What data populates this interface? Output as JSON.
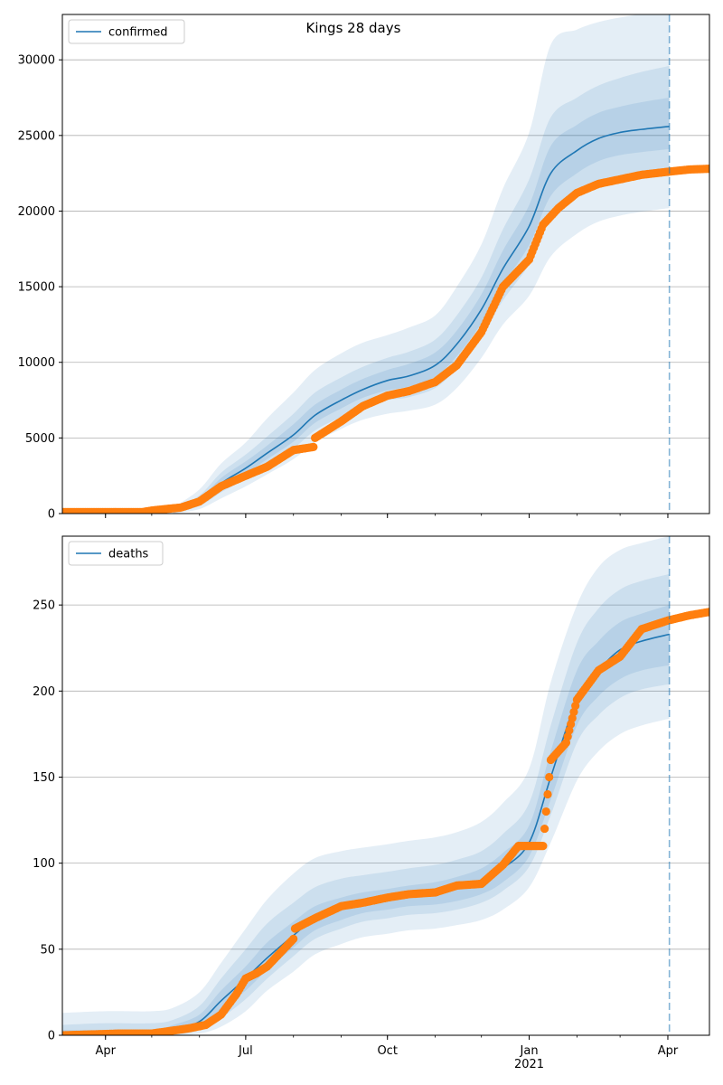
{
  "chart_data": [
    {
      "type": "line",
      "title": "Kings 28 days",
      "xlabel": "",
      "ylabel": "",
      "x_tick_labels": [
        "Apr",
        "Jul",
        "Oct",
        "Jan\n2021",
        "Apr"
      ],
      "x_tick_dates": [
        "2020-04-01",
        "2020-07-01",
        "2020-10-01",
        "2021-01-01",
        "2021-04-01"
      ],
      "xlim": [
        "2020-03-04",
        "2021-04-28"
      ],
      "ylim": [
        0,
        33000
      ],
      "y_ticks": [
        0,
        5000,
        10000,
        15000,
        20000,
        25000,
        30000
      ],
      "grid": "horizontal",
      "legend_position": "top-left",
      "forecast_start": "2021-04-02",
      "series": [
        {
          "name": "confirmed",
          "kind": "line",
          "color": "#1f77b4",
          "dates": [
            "2020-05-15",
            "2020-06-01",
            "2020-06-15",
            "2020-07-01",
            "2020-07-15",
            "2020-08-01",
            "2020-08-15",
            "2020-09-01",
            "2020-09-15",
            "2020-10-01",
            "2020-10-15",
            "2020-11-01",
            "2020-11-15",
            "2020-12-01",
            "2020-12-15",
            "2021-01-01",
            "2021-01-15",
            "2021-02-01",
            "2021-02-15",
            "2021-03-01",
            "2021-03-15",
            "2021-04-02"
          ],
          "values": [
            150,
            800,
            2000,
            3000,
            4000,
            5200,
            6500,
            7500,
            8200,
            8800,
            9100,
            9800,
            11200,
            13500,
            16200,
            19000,
            22500,
            24000,
            24800,
            25200,
            25400,
            25600
          ]
        },
        {
          "kind": "band",
          "color": "#1f77b4",
          "dates": [
            "2020-05-15",
            "2020-06-01",
            "2020-06-15",
            "2020-07-01",
            "2020-07-15",
            "2020-08-01",
            "2020-08-15",
            "2020-09-01",
            "2020-09-15",
            "2020-10-01",
            "2020-10-15",
            "2020-11-01",
            "2020-11-15",
            "2020-12-01",
            "2020-12-15",
            "2021-01-01",
            "2021-01-15",
            "2021-02-01",
            "2021-02-15",
            "2021-03-01",
            "2021-03-15",
            "2021-04-02"
          ],
          "outer_low": [
            0,
            300,
            1000,
            1800,
            2600,
            3600,
            4700,
            5600,
            6200,
            6600,
            6800,
            7200,
            8300,
            10300,
            12500,
            14400,
            17000,
            18500,
            19300,
            19700,
            19950,
            20200
          ],
          "outer_high": [
            400,
            1600,
            3300,
            4700,
            6300,
            8000,
            9500,
            10600,
            11300,
            11800,
            12300,
            13100,
            15000,
            17800,
            21500,
            25200,
            31000,
            32000,
            32500,
            32800,
            33000,
            33000
          ],
          "mid_low": [
            30,
            500,
            1400,
            2300,
            3200,
            4300,
            5500,
            6400,
            7100,
            7500,
            7700,
            8300,
            9600,
            11700,
            14100,
            16500,
            19500,
            21000,
            21800,
            22200,
            22400,
            22600
          ],
          "mid_high": [
            280,
            1200,
            2700,
            3900,
            5100,
            6600,
            8000,
            9000,
            9700,
            10300,
            10700,
            11500,
            13100,
            15600,
            18800,
            22100,
            26200,
            27500,
            28300,
            28800,
            29200,
            29600
          ],
          "inner_low": [
            80,
            650,
            1700,
            2650,
            3600,
            4750,
            6000,
            6950,
            7650,
            8150,
            8400,
            9050,
            10400,
            12600,
            15150,
            17750,
            21000,
            22500,
            23300,
            23700,
            23900,
            24100
          ],
          "inner_high": [
            220,
            1000,
            2350,
            3450,
            4500,
            5900,
            7200,
            8200,
            8900,
            9500,
            9900,
            10650,
            12100,
            14500,
            17400,
            20400,
            24300,
            25700,
            26500,
            26900,
            27200,
            27500
          ]
        },
        {
          "kind": "observed",
          "color": "#ff7f0e",
          "dates": [
            "2020-03-04",
            "2020-04-01",
            "2020-04-25",
            "2020-05-01",
            "2020-05-10",
            "2020-05-20",
            "2020-06-01",
            "2020-06-15",
            "2020-07-01",
            "2020-07-15",
            "2020-08-01",
            "2020-08-14",
            "2020-08-15",
            "2020-09-01",
            "2020-09-15",
            "2020-10-01",
            "2020-10-15",
            "2020-11-01",
            "2020-11-15",
            "2020-12-01",
            "2020-12-15",
            "2021-01-01",
            "2021-01-10",
            "2021-01-20",
            "2021-02-01",
            "2021-02-15",
            "2021-03-01",
            "2021-03-15",
            "2021-04-01",
            "2021-04-15",
            "2021-04-28"
          ],
          "values": [
            100,
            100,
            100,
            200,
            300,
            400,
            800,
            1800,
            2500,
            3100,
            4200,
            4400,
            5000,
            6100,
            7100,
            7800,
            8100,
            8700,
            9800,
            12000,
            15000,
            16800,
            19100,
            20200,
            21200,
            21800,
            22100,
            22400,
            22600,
            22750,
            22800
          ]
        }
      ]
    },
    {
      "type": "line",
      "title": "",
      "xlabel": "",
      "ylabel": "",
      "x_tick_labels": [
        "Apr",
        "Jul",
        "Oct",
        "Jan\n2021",
        "Apr"
      ],
      "x_tick_dates": [
        "2020-04-01",
        "2020-07-01",
        "2020-10-01",
        "2021-01-01",
        "2021-04-01"
      ],
      "xlim": [
        "2020-03-04",
        "2021-04-28"
      ],
      "ylim": [
        0,
        290
      ],
      "y_ticks": [
        0,
        50,
        100,
        150,
        200,
        250
      ],
      "grid": "horizontal",
      "legend_position": "top-left",
      "forecast_start": "2021-04-02",
      "series": [
        {
          "name": "deaths",
          "kind": "line",
          "color": "#1f77b4",
          "dates": [
            "2020-03-04",
            "2020-04-01",
            "2020-05-01",
            "2020-05-15",
            "2020-06-01",
            "2020-06-15",
            "2020-07-01",
            "2020-07-15",
            "2020-08-01",
            "2020-08-15",
            "2020-09-01",
            "2020-09-15",
            "2020-10-01",
            "2020-10-15",
            "2020-11-01",
            "2020-11-15",
            "2020-12-01",
            "2020-12-15",
            "2021-01-01",
            "2021-01-15",
            "2021-02-01",
            "2021-02-15",
            "2021-03-01",
            "2021-03-15",
            "2021-04-02"
          ],
          "values": [
            0,
            0,
            1,
            3,
            8,
            20,
            33,
            45,
            58,
            68,
            74,
            77,
            79,
            81,
            83,
            85,
            89,
            97,
            112,
            150,
            195,
            212,
            224,
            229,
            233
          ]
        },
        {
          "kind": "band",
          "color": "#1f77b4",
          "dates": [
            "2020-03-04",
            "2020-04-01",
            "2020-05-01",
            "2020-05-15",
            "2020-06-01",
            "2020-06-15",
            "2020-07-01",
            "2020-07-15",
            "2020-08-01",
            "2020-08-15",
            "2020-09-01",
            "2020-09-15",
            "2020-10-01",
            "2020-10-15",
            "2020-11-01",
            "2020-11-15",
            "2020-12-01",
            "2020-12-15",
            "2021-01-01",
            "2021-01-15",
            "2021-02-01",
            "2021-02-15",
            "2021-03-01",
            "2021-03-15",
            "2021-04-02"
          ],
          "outer_low": [
            0,
            0,
            0,
            0,
            1,
            5,
            14,
            26,
            37,
            47,
            53,
            57,
            59,
            61,
            62,
            64,
            67,
            73,
            86,
            112,
            148,
            165,
            175,
            180,
            184
          ],
          "outer_high": [
            13,
            14,
            14,
            16,
            25,
            42,
            62,
            79,
            94,
            103,
            107,
            109,
            111,
            113,
            115,
            118,
            124,
            135,
            155,
            205,
            250,
            272,
            282,
            286,
            290
          ],
          "mid_low": [
            0,
            0,
            0,
            0,
            3,
            10,
            21,
            33,
            46,
            56,
            62,
            66,
            68,
            70,
            71,
            73,
            77,
            84,
            98,
            128,
            170,
            186,
            196,
            201,
            204
          ],
          "mid_high": [
            6,
            7,
            7,
            9,
            17,
            33,
            50,
            65,
            77,
            86,
            91,
            93,
            95,
            97,
            99,
            102,
            107,
            117,
            135,
            180,
            228,
            248,
            259,
            264,
            268
          ],
          "inner_low": [
            0,
            0,
            0,
            1,
            5,
            15,
            26,
            38,
            51,
            61,
            67,
            71,
            73,
            75,
            76,
            78,
            82,
            89,
            104,
            137,
            180,
            197,
            207,
            212,
            215
          ],
          "inner_high": [
            3,
            3,
            3,
            6,
            12,
            26,
            40,
            54,
            66,
            75,
            80,
            83,
            85,
            87,
            89,
            92,
            97,
            106,
            122,
            165,
            212,
            229,
            240,
            245,
            250
          ]
        },
        {
          "kind": "observed",
          "color": "#ff7f0e",
          "dates": [
            "2020-03-04",
            "2020-04-10",
            "2020-05-01",
            "2020-05-25",
            "2020-06-05",
            "2020-06-15",
            "2020-06-25",
            "2020-07-01",
            "2020-07-08",
            "2020-07-15",
            "2020-08-01",
            "2020-08-02",
            "2020-08-15",
            "2020-09-01",
            "2020-09-15",
            "2020-10-01",
            "2020-10-15",
            "2020-11-01",
            "2020-11-15",
            "2020-12-01",
            "2020-12-15",
            "2020-12-25",
            "2021-01-10",
            "2021-01-15",
            "2021-01-25",
            "2021-02-01",
            "2021-02-15",
            "2021-03-01",
            "2021-03-15",
            "2021-04-01",
            "2021-04-15",
            "2021-04-28"
          ],
          "values": [
            0,
            1,
            1,
            4,
            6,
            12,
            24,
            33,
            36,
            40,
            56,
            62,
            68,
            75,
            77,
            80,
            82,
            83,
            87,
            88,
            99,
            110,
            110,
            160,
            170,
            195,
            212,
            220,
            236,
            241,
            244,
            246
          ]
        }
      ]
    }
  ]
}
